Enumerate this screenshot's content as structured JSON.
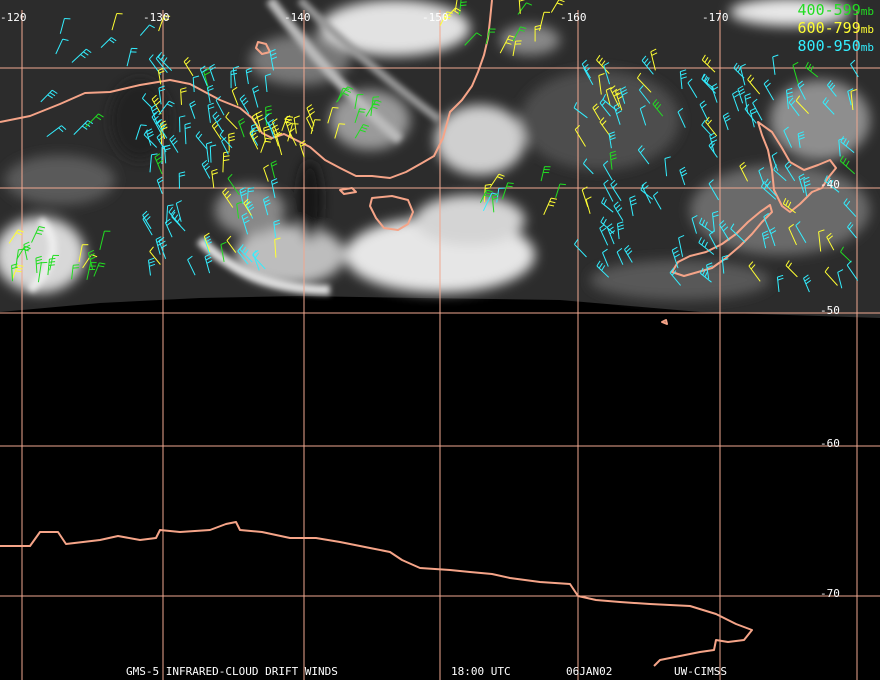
{
  "lon_labels": [
    "-120",
    "-130",
    "-140",
    "-150",
    "-160",
    "-170"
  ],
  "lat_labels": [
    "-40",
    "-50",
    "-60",
    "-70"
  ],
  "legend": [
    {
      "range": "400-599",
      "unit": "mb",
      "color": "#22dd22"
    },
    {
      "range": "600-799",
      "unit": "mb",
      "color": "#ffff33"
    },
    {
      "range": "800-950",
      "unit": "mb",
      "color": "#33eeff"
    }
  ],
  "footer": {
    "product": "GMS-5 INFRARED-CLOUD DRIFT WINDS",
    "time": "18:00 UTC",
    "date": "06JAN02",
    "source": "UW-CIMSS"
  },
  "colors": {
    "grid": "#f0a890",
    "coast": "#f5a488",
    "background": "#000000",
    "cloud": "#ececec"
  }
}
